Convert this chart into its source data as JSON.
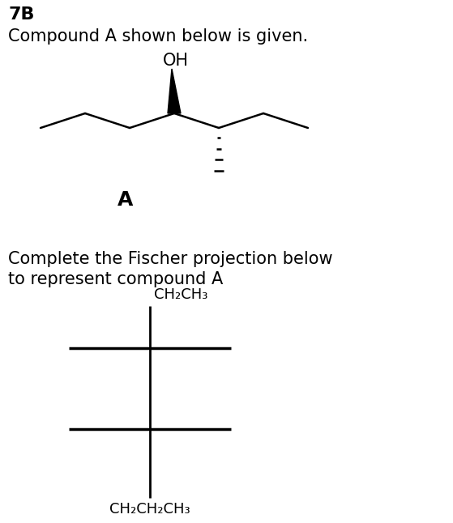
{
  "title_bold": "7B",
  "line1": "Compound A shown below is given.",
  "label_A": "A",
  "fischer_title_line1": "Complete the Fischer projection below",
  "fischer_title_line2": "to represent compound A",
  "top_label": "CH₂CH₃",
  "bottom_label": "CH₂CH₂CH₃",
  "bg_color": "#ffffff",
  "fg_color": "#000000",
  "font_size_text": 15,
  "font_size_bold": 16,
  "font_size_label": 13,
  "fig_width": 5.59,
  "fig_height": 6.46,
  "dpi": 100
}
